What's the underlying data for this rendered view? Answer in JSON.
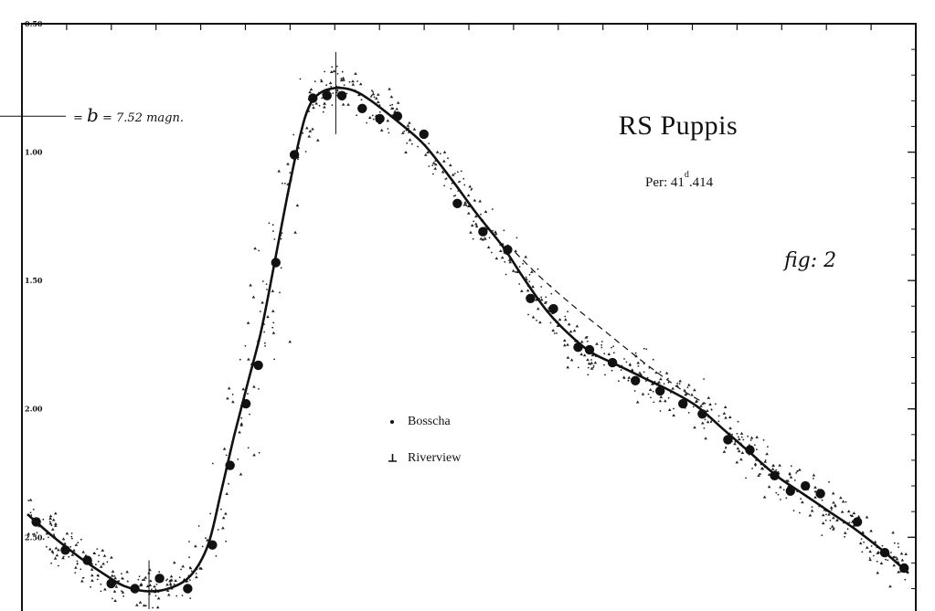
{
  "chart_data": {
    "type": "scatter",
    "title": "RS Puppis",
    "period_prefix": "Per: 41",
    "period_sup": "d",
    "period_suffix": ".414",
    "figure_label": "fig: 2",
    "reference_prefix": "= ",
    "reference_symbol": "b",
    "reference_value": " = 7.52 magn.",
    "y_reference": 0.86,
    "ylim": [
      0.5,
      2.78
    ],
    "y_inverted": true,
    "y_ticks": [
      {
        "value": 0.5,
        "label": "0.50"
      },
      {
        "value": 1.0,
        "label": "1.00"
      },
      {
        "value": 1.5,
        "label": "1.50"
      },
      {
        "value": 2.0,
        "label": "2.00"
      },
      {
        "value": 2.5,
        "label": "2.50"
      }
    ],
    "xlim": [
      0,
      1
    ],
    "legend": {
      "placement": "center",
      "items": [
        {
          "label": "Bosscha",
          "marker": "dot"
        },
        {
          "label": "Riverview",
          "marker": "inverted-t"
        }
      ]
    },
    "series": [
      {
        "name": "Bosscha",
        "values_xy": [
          [
            0.01,
            2.44
          ],
          [
            0.043,
            2.55
          ],
          [
            0.068,
            2.59
          ],
          [
            0.095,
            2.68
          ],
          [
            0.122,
            2.7
          ],
          [
            0.15,
            2.66
          ],
          [
            0.182,
            2.7
          ],
          [
            0.21,
            2.53
          ],
          [
            0.23,
            2.22
          ],
          [
            0.248,
            1.98
          ],
          [
            0.262,
            1.83
          ],
          [
            0.282,
            1.43
          ],
          [
            0.303,
            1.01
          ],
          [
            0.324,
            0.79
          ],
          [
            0.34,
            0.78
          ],
          [
            0.357,
            0.78
          ],
          [
            0.38,
            0.83
          ],
          [
            0.4,
            0.87
          ],
          [
            0.42,
            0.86
          ],
          [
            0.45,
            0.93
          ],
          [
            0.488,
            1.2
          ],
          [
            0.517,
            1.31
          ],
          [
            0.545,
            1.38
          ],
          [
            0.571,
            1.57
          ],
          [
            0.597,
            1.61
          ],
          [
            0.625,
            1.76
          ],
          [
            0.638,
            1.77
          ],
          [
            0.664,
            1.82
          ],
          [
            0.69,
            1.89
          ],
          [
            0.718,
            1.93
          ],
          [
            0.744,
            1.98
          ],
          [
            0.766,
            2.02
          ],
          [
            0.795,
            2.12
          ],
          [
            0.82,
            2.16
          ],
          [
            0.848,
            2.26
          ],
          [
            0.866,
            2.32
          ],
          [
            0.883,
            2.3
          ],
          [
            0.9,
            2.33
          ],
          [
            0.942,
            2.44
          ],
          [
            0.973,
            2.56
          ],
          [
            0.995,
            2.62
          ]
        ]
      },
      {
        "name": "Curve",
        "values_xy": [
          [
            0.0,
            2.41
          ],
          [
            0.03,
            2.5
          ],
          [
            0.06,
            2.58
          ],
          [
            0.09,
            2.65
          ],
          [
            0.11,
            2.69
          ],
          [
            0.135,
            2.71
          ],
          [
            0.16,
            2.7
          ],
          [
            0.185,
            2.65
          ],
          [
            0.205,
            2.53
          ],
          [
            0.22,
            2.32
          ],
          [
            0.235,
            2.1
          ],
          [
            0.25,
            1.9
          ],
          [
            0.265,
            1.7
          ],
          [
            0.28,
            1.44
          ],
          [
            0.295,
            1.17
          ],
          [
            0.31,
            0.93
          ],
          [
            0.32,
            0.82
          ],
          [
            0.332,
            0.77
          ],
          [
            0.35,
            0.75
          ],
          [
            0.37,
            0.76
          ],
          [
            0.39,
            0.8
          ],
          [
            0.42,
            0.88
          ],
          [
            0.45,
            0.97
          ],
          [
            0.48,
            1.1
          ],
          [
            0.51,
            1.24
          ],
          [
            0.54,
            1.37
          ],
          [
            0.565,
            1.5
          ],
          [
            0.59,
            1.62
          ],
          [
            0.615,
            1.71
          ],
          [
            0.64,
            1.78
          ],
          [
            0.67,
            1.83
          ],
          [
            0.7,
            1.88
          ],
          [
            0.73,
            1.93
          ],
          [
            0.76,
            1.99
          ],
          [
            0.79,
            2.08
          ],
          [
            0.82,
            2.17
          ],
          [
            0.85,
            2.26
          ],
          [
            0.88,
            2.33
          ],
          [
            0.91,
            2.4
          ],
          [
            0.94,
            2.47
          ],
          [
            0.97,
            2.55
          ],
          [
            1.0,
            2.64
          ]
        ]
      },
      {
        "name": "Dashed",
        "values_xy": [
          [
            0.545,
            1.36
          ],
          [
            0.58,
            1.48
          ],
          [
            0.62,
            1.6
          ],
          [
            0.66,
            1.71
          ],
          [
            0.7,
            1.82
          ],
          [
            0.74,
            1.92
          ],
          [
            0.77,
            1.98
          ]
        ]
      }
    ]
  }
}
